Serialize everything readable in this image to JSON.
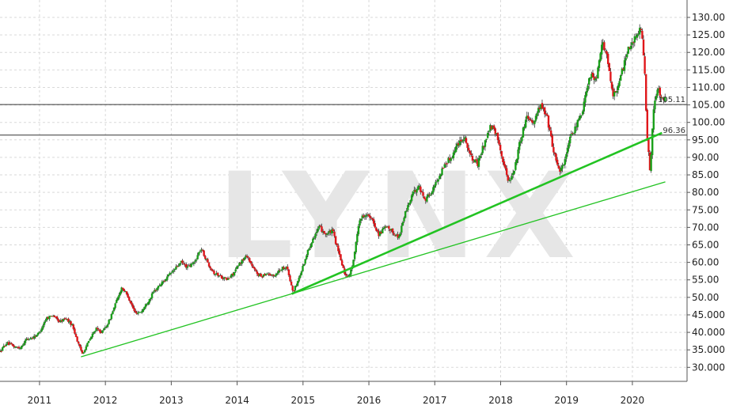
{
  "watermark": "LYNX",
  "colors": {
    "up": "#1aa01a",
    "down": "#e0161a",
    "wick": "#333333",
    "trend": "#22c322",
    "level": "#333333",
    "grid": "#d9d9d9"
  },
  "chart_data": {
    "type": "candlestick",
    "x_range": [
      2010.4,
      2020.83
    ],
    "ylim": [
      26,
      130
    ],
    "y_ticks": [
      {
        "value": 30,
        "label": "30.000"
      },
      {
        "value": 35,
        "label": "35.000"
      },
      {
        "value": 40,
        "label": "40.000"
      },
      {
        "value": 45,
        "label": "45.000"
      },
      {
        "value": 50,
        "label": "50.00"
      },
      {
        "value": 55,
        "label": "55.00"
      },
      {
        "value": 60,
        "label": "60.00"
      },
      {
        "value": 65,
        "label": "65.00"
      },
      {
        "value": 70,
        "label": "70.00"
      },
      {
        "value": 75,
        "label": "75.00"
      },
      {
        "value": 80,
        "label": "80.00"
      },
      {
        "value": 85,
        "label": "85.00"
      },
      {
        "value": 90,
        "label": "90.00"
      },
      {
        "value": 95,
        "label": "95.00"
      },
      {
        "value": 100,
        "label": "100.00"
      },
      {
        "value": 105,
        "label": "105.00"
      },
      {
        "value": 110,
        "label": "110.00"
      },
      {
        "value": 115,
        "label": "115.00"
      },
      {
        "value": 120,
        "label": "120.00"
      },
      {
        "value": 125,
        "label": "125.00"
      },
      {
        "value": 130,
        "label": "130.00"
      }
    ],
    "x_ticks": [
      {
        "value": 2011,
        "label": "2011"
      },
      {
        "value": 2012,
        "label": "2012"
      },
      {
        "value": 2013,
        "label": "2013"
      },
      {
        "value": 2014,
        "label": "2014"
      },
      {
        "value": 2015,
        "label": "2015"
      },
      {
        "value": 2016,
        "label": "2016"
      },
      {
        "value": 2017,
        "label": "2017"
      },
      {
        "value": 2018,
        "label": "2018"
      },
      {
        "value": 2019,
        "label": "2019"
      },
      {
        "value": 2020,
        "label": "2020"
      }
    ],
    "horizontal_levels": [
      {
        "value": 105.11,
        "label": "105.11"
      },
      {
        "value": 96.36,
        "label": "96.36"
      }
    ],
    "trendlines": [
      {
        "from": [
          2011.63,
          33.0
        ],
        "to": [
          2020.5,
          83.0
        ],
        "width": "thin"
      },
      {
        "from": [
          2014.83,
          51.0
        ],
        "to": [
          2020.45,
          97.0
        ],
        "width": "thick"
      }
    ],
    "price_path": [
      [
        2010.4,
        34.5
      ],
      [
        2010.5,
        37.0
      ],
      [
        2010.6,
        36.0
      ],
      [
        2010.7,
        35.5
      ],
      [
        2010.8,
        38.0
      ],
      [
        2010.9,
        38.5
      ],
      [
        2011.0,
        40.0
      ],
      [
        2011.1,
        44.0
      ],
      [
        2011.2,
        45.0
      ],
      [
        2011.3,
        43.0
      ],
      [
        2011.4,
        44.0
      ],
      [
        2011.5,
        42.0
      ],
      [
        2011.6,
        36.0
      ],
      [
        2011.65,
        34.0
      ],
      [
        2011.75,
        37.5
      ],
      [
        2011.85,
        41.0
      ],
      [
        2011.95,
        40.0
      ],
      [
        2012.05,
        43.0
      ],
      [
        2012.15,
        48.0
      ],
      [
        2012.25,
        53.0
      ],
      [
        2012.35,
        50.0
      ],
      [
        2012.45,
        45.5
      ],
      [
        2012.55,
        46.0
      ],
      [
        2012.65,
        49.0
      ],
      [
        2012.75,
        52.0
      ],
      [
        2012.85,
        54.0
      ],
      [
        2012.95,
        56.0
      ],
      [
        2013.05,
        58.0
      ],
      [
        2013.15,
        60.0
      ],
      [
        2013.25,
        58.5
      ],
      [
        2013.35,
        60.0
      ],
      [
        2013.45,
        64.0
      ],
      [
        2013.55,
        60.0
      ],
      [
        2013.65,
        57.0
      ],
      [
        2013.75,
        56.0
      ],
      [
        2013.85,
        55.0
      ],
      [
        2013.95,
        57.0
      ],
      [
        2014.05,
        60.0
      ],
      [
        2014.15,
        62.0
      ],
      [
        2014.25,
        58.0
      ],
      [
        2014.35,
        56.0
      ],
      [
        2014.45,
        57.0
      ],
      [
        2014.55,
        56.0
      ],
      [
        2014.65,
        58.0
      ],
      [
        2014.75,
        59.0
      ],
      [
        2014.8,
        55.0
      ],
      [
        2014.85,
        51.5
      ],
      [
        2014.95,
        56.0
      ],
      [
        2015.05,
        62.0
      ],
      [
        2015.15,
        67.0
      ],
      [
        2015.25,
        70.0
      ],
      [
        2015.35,
        68.0
      ],
      [
        2015.45,
        69.0
      ],
      [
        2015.55,
        62.0
      ],
      [
        2015.65,
        56.0
      ],
      [
        2015.72,
        57.0
      ],
      [
        2015.78,
        62.0
      ],
      [
        2015.85,
        72.0
      ],
      [
        2015.95,
        74.0
      ],
      [
        2016.05,
        72.0
      ],
      [
        2016.15,
        68.0
      ],
      [
        2016.25,
        70.0
      ],
      [
        2016.35,
        69.0
      ],
      [
        2016.45,
        67.0
      ],
      [
        2016.55,
        74.0
      ],
      [
        2016.65,
        79.0
      ],
      [
        2016.75,
        82.0
      ],
      [
        2016.85,
        78.0
      ],
      [
        2016.95,
        80.0
      ],
      [
        2017.05,
        84.0
      ],
      [
        2017.15,
        88.0
      ],
      [
        2017.25,
        90.0
      ],
      [
        2017.35,
        94.0
      ],
      [
        2017.45,
        96.0
      ],
      [
        2017.55,
        90.0
      ],
      [
        2017.65,
        88.0
      ],
      [
        2017.75,
        94.0
      ],
      [
        2017.85,
        99.0
      ],
      [
        2017.95,
        96.0
      ],
      [
        2018.05,
        88.0
      ],
      [
        2018.12,
        83.0
      ],
      [
        2018.2,
        86.0
      ],
      [
        2018.3,
        95.0
      ],
      [
        2018.4,
        102.0
      ],
      [
        2018.5,
        100.0
      ],
      [
        2018.6,
        105.0
      ],
      [
        2018.7,
        102.0
      ],
      [
        2018.8,
        92.0
      ],
      [
        2018.9,
        86.0
      ],
      [
        2018.97,
        89.0
      ],
      [
        2019.05,
        95.0
      ],
      [
        2019.15,
        99.0
      ],
      [
        2019.25,
        104.0
      ],
      [
        2019.35,
        114.0
      ],
      [
        2019.45,
        112.0
      ],
      [
        2019.55,
        123.0
      ],
      [
        2019.62,
        118.0
      ],
      [
        2019.7,
        108.0
      ],
      [
        2019.78,
        110.0
      ],
      [
        2019.85,
        115.0
      ],
      [
        2019.95,
        122.0
      ],
      [
        2020.05,
        124.0
      ],
      [
        2020.13,
        127.0
      ],
      [
        2020.18,
        118.0
      ],
      [
        2020.22,
        96.0
      ],
      [
        2020.27,
        86.0
      ],
      [
        2020.32,
        103.0
      ],
      [
        2020.38,
        110.0
      ],
      [
        2020.45,
        107.0
      ],
      [
        2020.5,
        106.5
      ]
    ]
  }
}
